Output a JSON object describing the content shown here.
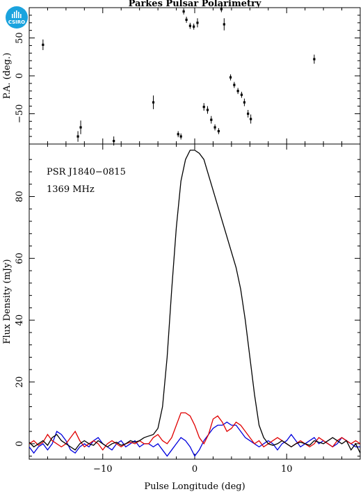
{
  "logo": {
    "text": "CSIRO",
    "color": "#1aa3de"
  },
  "title": "Parkes Pulsar Polarimetry",
  "chart_data": [
    {
      "type": "scatter",
      "panel": "position-angle",
      "ylabel": "P.A. (deg.)",
      "ylim": [
        -90,
        90
      ],
      "xlim": [
        -18,
        18
      ],
      "yticks": [
        -50,
        0,
        50
      ],
      "tick_labels": [
        "−50",
        "0",
        "50"
      ],
      "points": [
        {
          "x": -16.5,
          "y": 41,
          "err": 7
        },
        {
          "x": -12.7,
          "y": -80,
          "err": 7
        },
        {
          "x": -12.4,
          "y": -68,
          "err": 9
        },
        {
          "x": -8.8,
          "y": -86,
          "err": 6
        },
        {
          "x": -4.5,
          "y": -35,
          "err": 9
        },
        {
          "x": -1.8,
          "y": -77,
          "err": 4
        },
        {
          "x": -1.5,
          "y": -80,
          "err": 4
        },
        {
          "x": -1.2,
          "y": 85,
          "err": 4
        },
        {
          "x": -0.9,
          "y": 74,
          "err": 4
        },
        {
          "x": -0.5,
          "y": 66,
          "err": 4
        },
        {
          "x": -0.1,
          "y": 65,
          "err": 4
        },
        {
          "x": 0.3,
          "y": 70,
          "err": 6
        },
        {
          "x": 1.0,
          "y": -41,
          "err": 5
        },
        {
          "x": 1.4,
          "y": -45,
          "err": 5
        },
        {
          "x": 1.8,
          "y": -58,
          "err": 5
        },
        {
          "x": 2.2,
          "y": -68,
          "err": 4
        },
        {
          "x": 2.6,
          "y": -73,
          "err": 4
        },
        {
          "x": 2.9,
          "y": 88,
          "err": 4
        },
        {
          "x": 3.2,
          "y": 68,
          "err": 8
        },
        {
          "x": 3.9,
          "y": -2,
          "err": 4
        },
        {
          "x": 4.3,
          "y": -12,
          "err": 4
        },
        {
          "x": 4.7,
          "y": -20,
          "err": 4
        },
        {
          "x": 5.1,
          "y": -25,
          "err": 4
        },
        {
          "x": 5.4,
          "y": -35,
          "err": 5
        },
        {
          "x": 5.8,
          "y": -50,
          "err": 5
        },
        {
          "x": 6.1,
          "y": -57,
          "err": 6
        },
        {
          "x": 13.0,
          "y": 22,
          "err": 6
        }
      ]
    },
    {
      "type": "line",
      "panel": "flux-profile",
      "annotations": [
        "PSR J1840−0815",
        "1369 MHz"
      ],
      "xlabel": "Pulse Longitude (deg)",
      "ylabel": "Flux Density (mJy)",
      "xlim": [
        -18,
        18
      ],
      "ylim": [
        -5,
        97
      ],
      "xticks": [
        -10,
        0,
        10
      ],
      "xtick_labels": [
        "−10",
        "0",
        "10"
      ],
      "yticks": [
        0,
        20,
        40,
        60,
        80
      ],
      "ytick_labels": [
        "0",
        "20",
        "40",
        "60",
        "80"
      ],
      "series": [
        {
          "color": "#000000",
          "x": [
            -18,
            -17.5,
            -17,
            -16.5,
            -16,
            -15.5,
            -15,
            -14.5,
            -14,
            -13.5,
            -13,
            -12.5,
            -12,
            -11.5,
            -11,
            -10.5,
            -10,
            -9.5,
            -9,
            -8.5,
            -8,
            -7.5,
            -7,
            -6.5,
            -6,
            -5.5,
            -5,
            -4.5,
            -4,
            -3.5,
            -3,
            -2.5,
            -2,
            -1.5,
            -1,
            -0.5,
            0,
            0.5,
            1,
            1.5,
            2,
            2.5,
            3,
            3.5,
            4,
            4.5,
            5,
            5.5,
            6,
            6.5,
            7,
            7.5,
            8,
            8.5,
            9,
            9.5,
            10,
            10.5,
            11,
            11.5,
            12,
            12.5,
            13,
            13.5,
            14,
            14.5,
            15,
            15.5,
            16,
            16.5,
            17,
            17.5,
            18
          ],
          "y": [
            0.5,
            -1,
            0,
            1,
            -0.5,
            2,
            3,
            1,
            0,
            -1,
            -2,
            0,
            1,
            0,
            -0.5,
            1,
            0,
            -1,
            0,
            0.5,
            -0.5,
            0,
            1,
            0.5,
            1,
            2,
            2.5,
            3,
            5,
            12,
            28,
            50,
            70,
            85,
            92,
            95,
            95,
            94,
            92,
            87,
            82,
            77,
            72,
            67,
            62,
            57,
            50,
            40,
            28,
            16,
            6,
            2,
            0,
            -0.5,
            0,
            1,
            0,
            -1,
            0,
            0.5,
            0,
            -0.5,
            1,
            0.5,
            0,
            1,
            2,
            1,
            0,
            1,
            -2,
            0,
            -3
          ]
        },
        {
          "color": "#e00000",
          "x": [
            -18,
            -17.5,
            -17,
            -16.5,
            -16,
            -15.5,
            -15,
            -14.5,
            -14,
            -13.5,
            -13,
            -12.5,
            -12,
            -11.5,
            -11,
            -10.5,
            -10,
            -9.5,
            -9,
            -8.5,
            -8,
            -7.5,
            -7,
            -6.5,
            -6,
            -5.5,
            -5,
            -4.5,
            -4,
            -3.5,
            -3,
            -2.5,
            -2,
            -1.5,
            -1,
            -0.5,
            0,
            0.5,
            1,
            1.5,
            2,
            2.5,
            3,
            3.5,
            4,
            4.5,
            5,
            5.5,
            6,
            6.5,
            7,
            7.5,
            8,
            8.5,
            9,
            9.5,
            10,
            10.5,
            11,
            11.5,
            12,
            12.5,
            13,
            13.5,
            14,
            14.5,
            15,
            15.5,
            16,
            16.5,
            17,
            17.5,
            18
          ],
          "y": [
            0,
            1,
            -0.5,
            0.5,
            3,
            1,
            0,
            -1,
            0,
            2,
            4,
            1,
            -1,
            0,
            1,
            0,
            -2,
            0,
            1,
            0,
            -1,
            0,
            0.5,
            0,
            1,
            0,
            0,
            2,
            3,
            1,
            0,
            2,
            6,
            10,
            10,
            9,
            6,
            2,
            0,
            3,
            8,
            9,
            7,
            4,
            5,
            7,
            6,
            4,
            2,
            0,
            1,
            -1,
            0,
            1,
            2,
            1,
            0,
            -1,
            0,
            1,
            0,
            -1,
            0,
            2,
            1,
            0,
            -1,
            1,
            2,
            1,
            0,
            1,
            0
          ]
        },
        {
          "color": "#0000dd",
          "x": [
            -18,
            -17.5,
            -17,
            -16.5,
            -16,
            -15.5,
            -15,
            -14.5,
            -14,
            -13.5,
            -13,
            -12.5,
            -12,
            -11.5,
            -11,
            -10.5,
            -10,
            -9.5,
            -9,
            -8.5,
            -8,
            -7.5,
            -7,
            -6.5,
            -6,
            -5.5,
            -5,
            -4.5,
            -4,
            -3.5,
            -3,
            -2.5,
            -2,
            -1.5,
            -1,
            -0.5,
            0,
            0.5,
            1,
            1.5,
            2,
            2.5,
            3,
            3.5,
            4,
            4.5,
            5,
            5.5,
            6,
            6.5,
            7,
            7.5,
            8,
            8.5,
            9,
            9.5,
            10,
            10.5,
            11,
            11.5,
            12,
            12.5,
            13,
            13.5,
            14,
            14.5,
            15,
            15.5,
            16,
            16.5,
            17,
            17.5,
            18
          ],
          "y": [
            -1,
            -3,
            -1,
            0,
            -2,
            0,
            4,
            3,
            1,
            -2,
            -3,
            -1,
            0,
            -1,
            1,
            2,
            0,
            -1,
            -2,
            0,
            1,
            -1,
            0,
            1,
            -1,
            0,
            0,
            -1,
            0,
            -2,
            -4,
            -2,
            0,
            2,
            1,
            -1,
            -4,
            -2,
            1,
            3,
            5,
            6,
            6,
            7,
            6,
            6,
            4,
            2,
            1,
            0,
            -1,
            0,
            1,
            0,
            -2,
            0,
            1,
            3,
            1,
            -1,
            0,
            1,
            2,
            0,
            1,
            0,
            -1,
            0,
            2,
            1,
            0,
            -1,
            -1
          ]
        }
      ]
    }
  ]
}
